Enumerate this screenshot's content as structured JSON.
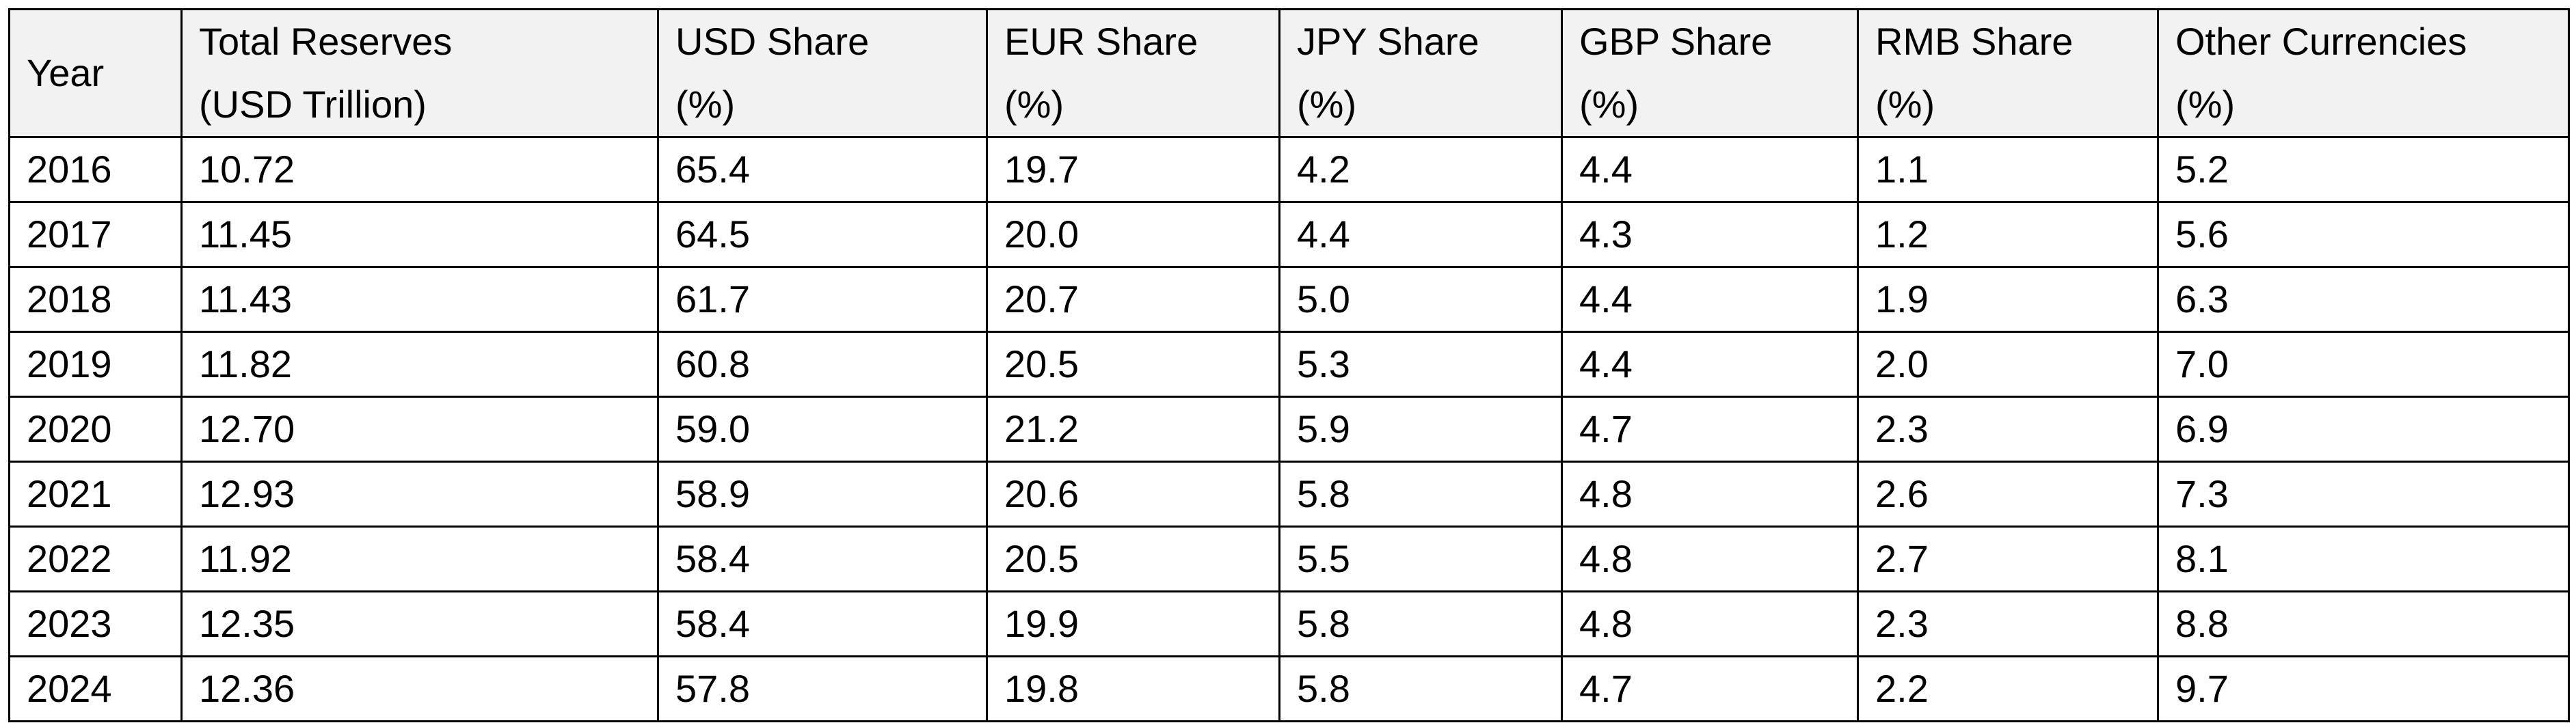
{
  "table": {
    "columns": [
      [
        "Year"
      ],
      [
        "Total Reserves",
        "(USD Trillion)"
      ],
      [
        "USD Share",
        "(%)"
      ],
      [
        "EUR Share",
        "(%)"
      ],
      [
        "JPY Share",
        "(%)"
      ],
      [
        "GBP Share",
        "(%)"
      ],
      [
        "RMB Share",
        "(%)"
      ],
      [
        "Other Currencies",
        "(%)"
      ]
    ],
    "rows": [
      [
        "2016",
        "10.72",
        "65.4",
        "19.7",
        "4.2",
        "4.4",
        "1.1",
        "5.2"
      ],
      [
        "2017",
        "11.45",
        "64.5",
        "20.0",
        "4.4",
        "4.3",
        "1.2",
        "5.6"
      ],
      [
        "2018",
        "11.43",
        "61.7",
        "20.7",
        "5.0",
        "4.4",
        "1.9",
        "6.3"
      ],
      [
        "2019",
        "11.82",
        "60.8",
        "20.5",
        "5.3",
        "4.4",
        "2.0",
        "7.0"
      ],
      [
        "2020",
        "12.70",
        "59.0",
        "21.2",
        "5.9",
        "4.7",
        "2.3",
        "6.9"
      ],
      [
        "2021",
        "12.93",
        "58.9",
        "20.6",
        "5.8",
        "4.8",
        "2.6",
        "7.3"
      ],
      [
        "2022",
        "11.92",
        "58.4",
        "20.5",
        "5.5",
        "4.8",
        "2.7",
        "8.1"
      ],
      [
        "2023",
        "12.35",
        "58.4",
        "19.9",
        "5.8",
        "4.8",
        "2.3",
        "8.8"
      ],
      [
        "2024",
        "12.36",
        "57.8",
        "19.8",
        "5.8",
        "4.7",
        "2.2",
        "9.7"
      ]
    ]
  }
}
